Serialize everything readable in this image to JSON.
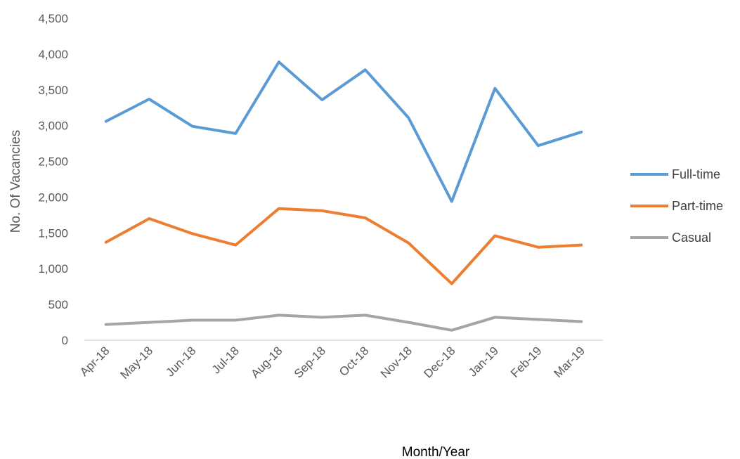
{
  "chart_data": {
    "type": "line",
    "title": "",
    "xlabel": "Month/Year",
    "ylabel": "No. Of Vacancies",
    "categories": [
      "Apr-18",
      "May-18",
      "Jun-18",
      "Jul-18",
      "Aug-18",
      "Sep-18",
      "Oct-18",
      "Nov-18",
      "Dec-18",
      "Jan-19",
      "Feb-19",
      "Mar-19"
    ],
    "ylim": [
      0,
      4500
    ],
    "yticks": [
      0,
      500,
      1000,
      1500,
      2000,
      2500,
      3000,
      3500,
      4000,
      4500
    ],
    "ytick_labels": [
      "0",
      "500",
      "1,000",
      "1,500",
      "2,000",
      "2,500",
      "3,000",
      "3,500",
      "4,000",
      "4,500"
    ],
    "grid": false,
    "legend_position": "right",
    "series": [
      {
        "name": "Full-time",
        "color": "#5b9bd5",
        "values": [
          3060,
          3370,
          2990,
          2890,
          3890,
          3360,
          3780,
          3110,
          1940,
          3520,
          2720,
          2910
        ]
      },
      {
        "name": "Part-time",
        "color": "#ed7d31",
        "values": [
          1370,
          1700,
          1490,
          1330,
          1840,
          1810,
          1710,
          1360,
          790,
          1460,
          1300,
          1330
        ]
      },
      {
        "name": "Casual",
        "color": "#a5a5a5",
        "values": [
          220,
          250,
          280,
          280,
          350,
          320,
          350,
          250,
          140,
          320,
          290,
          260
        ]
      }
    ]
  }
}
